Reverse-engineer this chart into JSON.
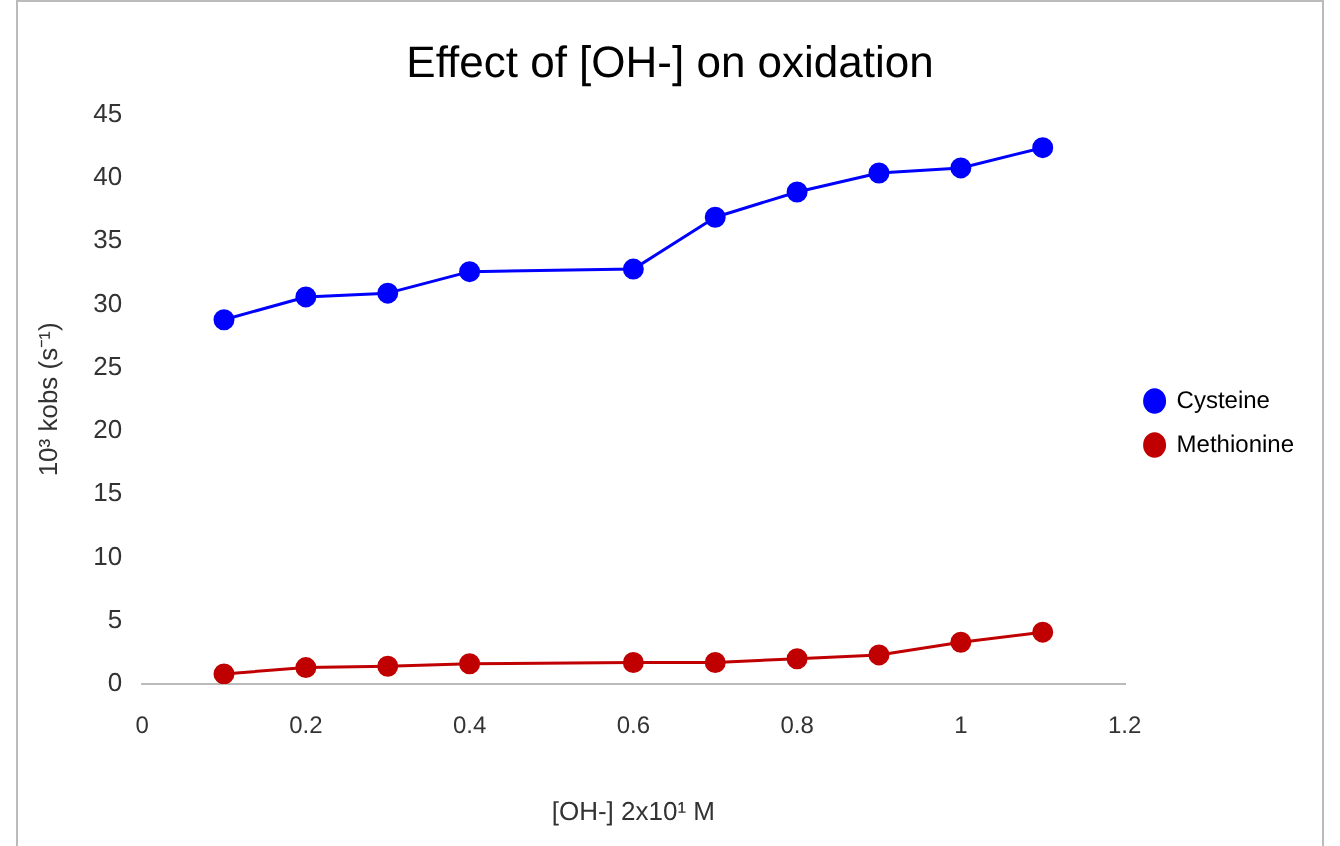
{
  "chart_data": {
    "type": "line",
    "title": "Effect of [OH-] on oxidation",
    "xlabel": "[OH-] 2x10¹ M",
    "ylabel": "10³ kobs (s⁻¹)",
    "x": [
      0.1,
      0.2,
      0.3,
      0.4,
      0.6,
      0.7,
      0.8,
      0.9,
      1.0,
      1.1
    ],
    "series": [
      {
        "name": "Cysteine",
        "color": "#0000ff",
        "values": [
          28.8,
          30.6,
          30.9,
          32.6,
          32.8,
          36.9,
          38.9,
          40.4,
          40.8,
          42.4
        ]
      },
      {
        "name": "Methionine",
        "color": "#c00000",
        "values": [
          0.8,
          1.3,
          1.4,
          1.6,
          1.7,
          1.7,
          2.0,
          2.3,
          3.3,
          4.1
        ]
      }
    ],
    "xlim": [
      0,
      1.2
    ],
    "xticks": [
      0,
      0.2,
      0.4,
      0.6,
      0.8,
      1,
      1.2
    ],
    "ylim": [
      0,
      45
    ],
    "yticks": [
      0,
      5,
      10,
      15,
      20,
      25,
      30,
      35,
      40,
      45
    ],
    "grid": false,
    "legend": "right",
    "marker": "circle",
    "line_style": "solid"
  }
}
